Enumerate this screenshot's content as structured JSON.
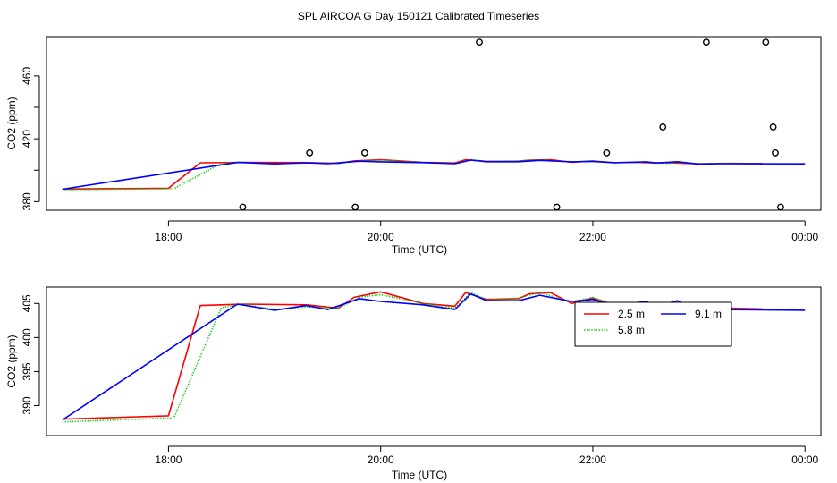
{
  "title": "SPL AIRCOA G  Day 150121  Calibrated Timeseries",
  "colors": {
    "2.5 m": "#ff0000",
    "5.8 m": "#00cc00",
    "9.1 m": "#0000ff",
    "axis": "#000000"
  },
  "chart_data": [
    {
      "type": "line+scatter",
      "xlabel": "Time (UTC)",
      "ylabel": "CO2 (ppm)",
      "x_unit": "hours UTC (24 = 00:00 next day)",
      "xlim": [
        16.85,
        24.15
      ],
      "ylim": [
        374.5,
        485
      ],
      "xticks": [
        18,
        20,
        22,
        24
      ],
      "xtick_labels": [
        "18:00",
        "20:00",
        "22:00",
        "00:00"
      ],
      "yticks": [
        380,
        420,
        460
      ],
      "yticks_minor": [
        400,
        440
      ],
      "ytick_labels": [
        "380",
        "420",
        "460"
      ],
      "series": [
        {
          "name": "2.5 m",
          "x": [
            17.0,
            18.0,
            18.3,
            18.7,
            19.3,
            19.6,
            19.75,
            20.0,
            20.4,
            20.7,
            20.8,
            21.0,
            21.3,
            21.4,
            21.6,
            21.8,
            22.0,
            22.2,
            22.4,
            22.6,
            22.7,
            22.8,
            23.0,
            23.3,
            23.6
          ],
          "y": [
            388.0,
            388.5,
            404.7,
            404.9,
            404.8,
            404.3,
            405.9,
            406.7,
            405.0,
            404.6,
            406.6,
            405.6,
            405.7,
            406.4,
            406.6,
            405.0,
            405.8,
            404.8,
            405.0,
            404.6,
            404.8,
            404.5,
            404.0,
            404.3,
            404.2
          ]
        },
        {
          "name": "5.8 m",
          "x": [
            17.0,
            18.05,
            18.5,
            18.7,
            19.0,
            19.3,
            19.6,
            19.8,
            20.0,
            20.4,
            20.7,
            20.85,
            21.0,
            21.3,
            21.5,
            21.8,
            22.0,
            22.2,
            22.5,
            22.7,
            22.8,
            23.0,
            23.2,
            23.6
          ],
          "y": [
            387.6,
            388.2,
            404.4,
            404.9,
            404.1,
            404.5,
            404.3,
            405.9,
            406.3,
            405.0,
            404.3,
            406.6,
            405.5,
            405.8,
            406.6,
            405.2,
            405.9,
            404.8,
            405.1,
            404.2,
            404.9,
            404.1,
            404.3,
            404.1
          ]
        },
        {
          "name": "9.1 m",
          "x": [
            17.0,
            18.65,
            19.0,
            19.3,
            19.5,
            19.8,
            20.0,
            20.4,
            20.7,
            20.85,
            21.0,
            21.3,
            21.5,
            21.8,
            22.0,
            22.2,
            22.5,
            22.6,
            22.8,
            23.0,
            23.2,
            24.0
          ],
          "y": [
            387.9,
            404.9,
            404.0,
            404.7,
            404.1,
            405.7,
            405.3,
            404.8,
            404.1,
            406.4,
            405.4,
            405.4,
            406.2,
            405.3,
            405.6,
            404.7,
            405.3,
            404.6,
            405.4,
            403.9,
            404.1,
            404.0
          ]
        }
      ],
      "points": [
        {
          "x": 18.7,
          "y": 376.5
        },
        {
          "x": 19.33,
          "y": 411.0
        },
        {
          "x": 19.76,
          "y": 376.5
        },
        {
          "x": 19.85,
          "y": 411.0
        },
        {
          "x": 20.93,
          "y": 481.5
        },
        {
          "x": 21.66,
          "y": 376.5
        },
        {
          "x": 22.13,
          "y": 411.0
        },
        {
          "x": 22.66,
          "y": 427.5
        },
        {
          "x": 23.07,
          "y": 481.5
        },
        {
          "x": 23.63,
          "y": 481.5
        },
        {
          "x": 23.7,
          "y": 427.5
        },
        {
          "x": 23.72,
          "y": 411.0
        },
        {
          "x": 23.77,
          "y": 376.5
        }
      ]
    },
    {
      "type": "line",
      "xlabel": "Time (UTC)",
      "ylabel": "CO2 (ppm)",
      "x_unit": "hours UTC (24 = 00:00 next day)",
      "xlim": [
        16.85,
        24.15
      ],
      "ylim": [
        385.6,
        407.4
      ],
      "xticks": [
        18,
        20,
        22,
        24
      ],
      "xtick_labels": [
        "18:00",
        "20:00",
        "22:00",
        "00:00"
      ],
      "yticks": [
        390,
        395,
        400,
        405
      ],
      "ytick_labels": [
        "390",
        "395",
        "400",
        "405"
      ],
      "legend": {
        "position": "top-right",
        "entries": [
          "2.5 m",
          "5.8 m",
          "9.1 m"
        ]
      },
      "series": [
        {
          "name": "2.5 m",
          "x": [
            17.0,
            18.0,
            18.3,
            18.7,
            19.3,
            19.6,
            19.75,
            20.0,
            20.4,
            20.7,
            20.8,
            21.0,
            21.3,
            21.4,
            21.6,
            21.8,
            22.0,
            22.2,
            22.4,
            22.6,
            22.7,
            22.8,
            23.0,
            23.3,
            23.6
          ],
          "y": [
            388.0,
            388.5,
            404.7,
            404.9,
            404.8,
            404.3,
            405.9,
            406.7,
            405.0,
            404.6,
            406.6,
            405.6,
            405.7,
            406.4,
            406.6,
            405.0,
            405.8,
            404.8,
            405.0,
            404.6,
            404.8,
            404.5,
            404.0,
            404.3,
            404.2
          ]
        },
        {
          "name": "5.8 m",
          "x": [
            17.0,
            18.05,
            18.5,
            18.7,
            19.0,
            19.3,
            19.6,
            19.8,
            20.0,
            20.4,
            20.7,
            20.85,
            21.0,
            21.3,
            21.5,
            21.8,
            22.0,
            22.2,
            22.5,
            22.7,
            22.8,
            23.0,
            23.2,
            23.6
          ],
          "y": [
            387.6,
            388.2,
            404.4,
            404.9,
            404.1,
            404.5,
            404.3,
            405.9,
            406.3,
            405.0,
            404.3,
            406.6,
            405.5,
            405.8,
            406.6,
            405.2,
            405.9,
            404.8,
            405.1,
            404.2,
            404.9,
            404.1,
            404.3,
            404.1
          ]
        },
        {
          "name": "9.1 m",
          "x": [
            17.0,
            18.65,
            19.0,
            19.3,
            19.5,
            19.8,
            20.0,
            20.4,
            20.7,
            20.85,
            21.0,
            21.3,
            21.5,
            21.8,
            22.0,
            22.2,
            22.5,
            22.6,
            22.8,
            23.0,
            23.2,
            24.0
          ],
          "y": [
            387.9,
            404.9,
            404.0,
            404.7,
            404.1,
            405.7,
            405.3,
            404.8,
            404.1,
            406.4,
            405.4,
            405.4,
            406.2,
            405.3,
            405.6,
            404.7,
            405.3,
            404.6,
            405.4,
            403.9,
            404.1,
            404.0
          ]
        }
      ]
    }
  ]
}
